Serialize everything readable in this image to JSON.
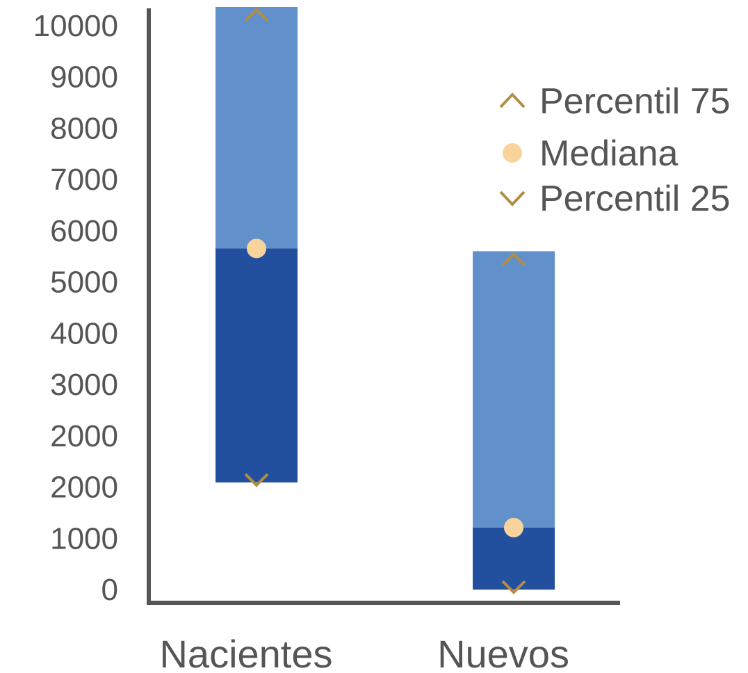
{
  "chart_data": {
    "type": "bar",
    "categories": [
      "Nacientes",
      "Nuevos"
    ],
    "y_ticks": [
      "0",
      "1000",
      "2000",
      "2000",
      "3000",
      "4000",
      "5000",
      "6000",
      "7000",
      "8000",
      "9000",
      "10000"
    ],
    "ylim": [
      0,
      11000
    ],
    "series": [
      {
        "name": "Percentil 75",
        "values": [
          11300,
          6000
        ]
      },
      {
        "name": "Mediana",
        "values": [
          6050,
          1100
        ]
      },
      {
        "name": "Percentil 25",
        "values": [
          1900,
          0
        ]
      }
    ],
    "legend": {
      "position": "top-right",
      "items": [
        {
          "label": "Percentil 75",
          "marker": "chevron-up"
        },
        {
          "label": "Mediana",
          "marker": "circle"
        },
        {
          "label": "Percentil 25",
          "marker": "chevron-down"
        }
      ]
    },
    "grid": false
  },
  "colors": {
    "upper_box": "#6190CB",
    "lower_box": "#23509E",
    "marker": "#B08E45",
    "median": "#F8D39C",
    "axis": "#555555",
    "text": "#555555"
  }
}
